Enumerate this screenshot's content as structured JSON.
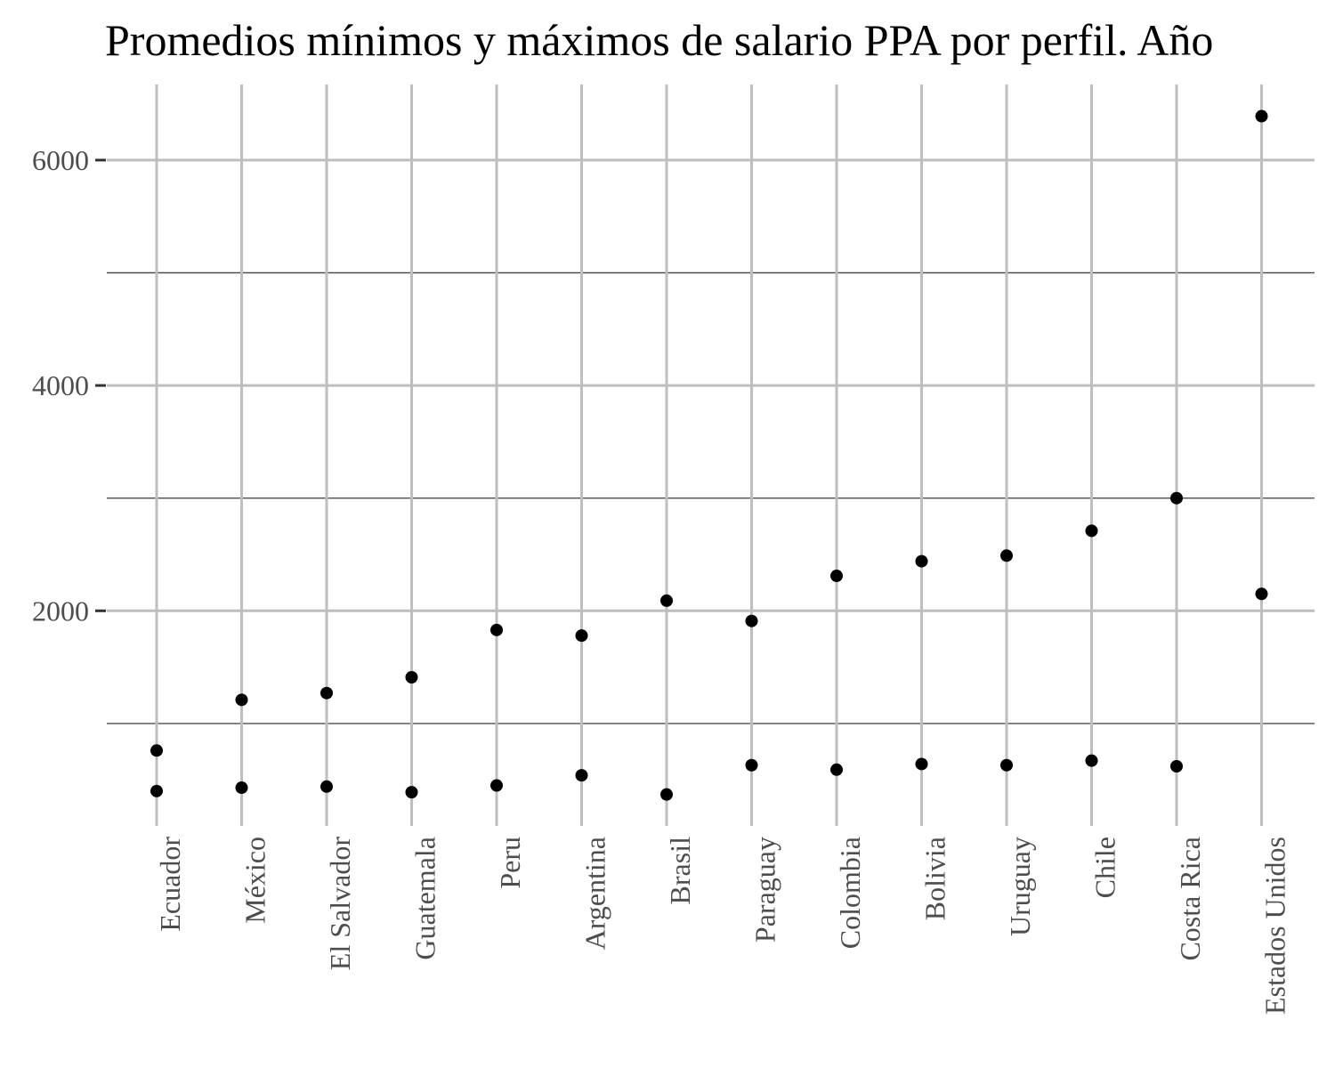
{
  "chart_data": {
    "type": "scatter",
    "title": "Promedios mínimos y máximos de salario PPA por perfil. Año",
    "xlabel": "",
    "ylabel": "",
    "categories": [
      "Ecuador",
      "México",
      "El Salvador",
      "Guatemala",
      "Peru",
      "Argentina",
      "Brasil",
      "Paraguay",
      "Colombia",
      "Bolivia",
      "Uruguay",
      "Chile",
      "Costa Rica",
      "Estados Unidos"
    ],
    "series": [
      {
        "values": [
          400,
          430,
          440,
          390,
          450,
          540,
          370,
          630,
          590,
          640,
          630,
          670,
          620,
          6390
        ]
      },
      {
        "values": [
          760,
          1210,
          1270,
          1410,
          1830,
          1780,
          2090,
          1910,
          2310,
          2440,
          2490,
          2710,
          3000,
          2150
        ]
      }
    ],
    "yticks": [
      "2000",
      "4000",
      "6000"
    ],
    "ylim": [
      -200,
      6600
    ],
    "grid": true,
    "point_color": "#000000",
    "grid_major_color": "#bebebe",
    "grid_minor_color": "#4d4d4d"
  }
}
